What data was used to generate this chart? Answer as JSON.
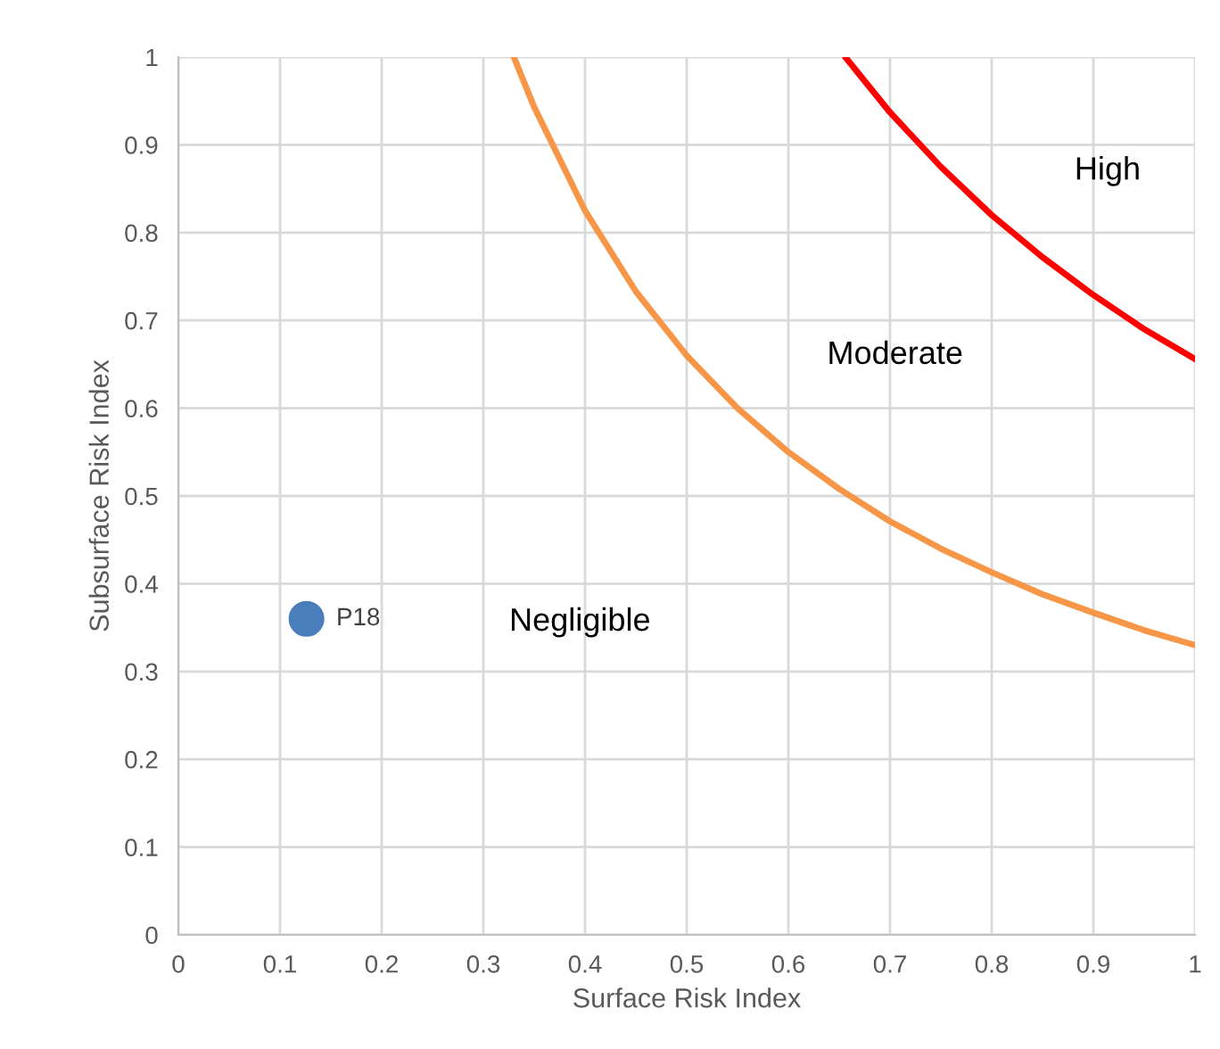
{
  "chart_data": {
    "type": "line",
    "xlabel": "Surface Risk Index",
    "ylabel": "Subsurface Risk Index",
    "xlim": [
      0,
      1
    ],
    "ylim": [
      0,
      1
    ],
    "xticks": [
      0,
      0.1,
      0.2,
      0.3,
      0.4,
      0.5,
      0.6,
      0.7,
      0.8,
      0.9,
      1
    ],
    "yticks": [
      0,
      0.1,
      0.2,
      0.3,
      0.4,
      0.5,
      0.6,
      0.7,
      0.8,
      0.9,
      1
    ],
    "grid": true,
    "legend": false,
    "series": [
      {
        "color": "#f79646",
        "x": [
          0.33,
          0.35,
          0.4,
          0.45,
          0.5,
          0.55,
          0.6,
          0.65,
          0.7,
          0.75,
          0.8,
          0.85,
          0.9,
          0.95,
          1.0
        ],
        "values": [
          1.0,
          0.943,
          0.825,
          0.733,
          0.66,
          0.6,
          0.55,
          0.508,
          0.471,
          0.44,
          0.413,
          0.388,
          0.367,
          0.347,
          0.33
        ]
      },
      {
        "color": "#ff0000",
        "x": [
          0.656,
          0.7,
          0.75,
          0.8,
          0.85,
          0.9,
          0.95,
          1.0
        ],
        "values": [
          1.0,
          0.937,
          0.875,
          0.82,
          0.772,
          0.729,
          0.69,
          0.656
        ]
      },
      {
        "type": "scatter",
        "name": "P18",
        "color": "#4a7ebb",
        "marker": "circle",
        "x": [
          0.126
        ],
        "values": [
          0.36
        ]
      }
    ],
    "annotations": [
      "Negligible",
      "Moderate",
      "High"
    ]
  }
}
